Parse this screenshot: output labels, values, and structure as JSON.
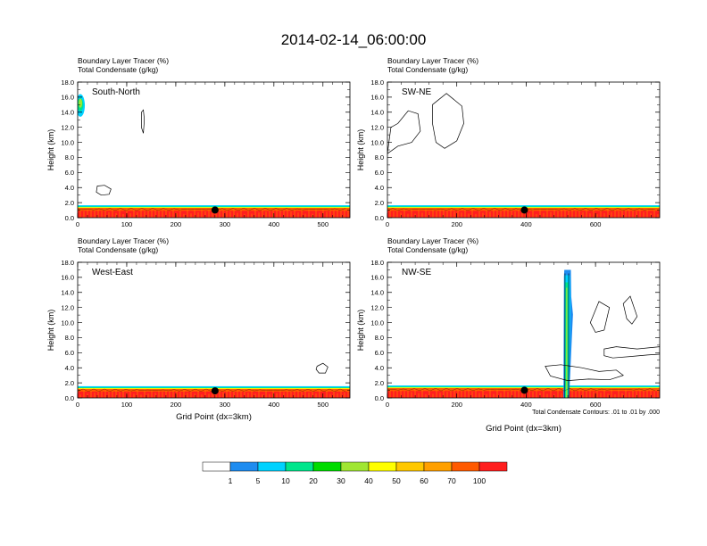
{
  "figure": {
    "title": "2014-02-14_06:00:00",
    "contour_note": "Total Condensate Contours: .01 to .01 by .000"
  },
  "colorbar": {
    "colors": [
      "#ffffff",
      "#1e8cf0",
      "#00d2ff",
      "#00e68c",
      "#00dc00",
      "#a0e632",
      "#ffff00",
      "#ffc800",
      "#ffa000",
      "#ff5a00",
      "#ff1e1e"
    ],
    "labels": [
      "1",
      "5",
      "10",
      "20",
      "30",
      "40",
      "50",
      "60",
      "70",
      "100"
    ]
  },
  "chart_data": [
    {
      "type": "contour",
      "panel_name": "South-North",
      "subtitle_1": "Boundary Layer Tracer    (%)",
      "subtitle_2": "Total Condensate   (g/kg)",
      "ylabel": "Height (km)",
      "xlabel": "",
      "xlim": [
        0,
        555
      ],
      "ylim": [
        0,
        18
      ],
      "xticks": [
        "0",
        "100",
        "200",
        "300",
        "400",
        "500"
      ],
      "xtick_values": [
        0,
        100,
        200,
        300,
        400,
        500
      ],
      "yticks": [
        "0.0",
        "2.0",
        "4.0",
        "6.0",
        "8.0",
        "10.0",
        "12.0",
        "14.0",
        "16.0",
        "18.0"
      ],
      "marker_x": 280,
      "bl_top": 1.3,
      "convective_column": {
        "x": [
          0,
          20
        ],
        "top": 16.5
      },
      "cloud_outlines": [
        [
          [
            130,
            14
          ],
          [
            134,
            14.3
          ],
          [
            136,
            13
          ],
          [
            134,
            11.2
          ],
          [
            130,
            12
          ]
        ],
        [
          [
            40,
            4.2
          ],
          [
            55,
            4.3
          ],
          [
            68,
            3.8
          ],
          [
            64,
            3.1
          ],
          [
            48,
            3.0
          ],
          [
            38,
            3.4
          ]
        ]
      ]
    },
    {
      "type": "contour",
      "panel_name": "SW-NE",
      "subtitle_1": "Boundary Layer Tracer    (%)",
      "subtitle_2": "Total Condensate   (g/kg)",
      "ylabel": "Height (km)",
      "xlabel": "",
      "xlim": [
        0,
        785
      ],
      "ylim": [
        0,
        18
      ],
      "xticks": [
        "0",
        "200",
        "400",
        "600"
      ],
      "xtick_values": [
        0,
        200,
        400,
        600
      ],
      "yticks": [
        "0.0",
        "2.0",
        "4.0",
        "6.0",
        "8.0",
        "10.0",
        "12.0",
        "14.0",
        "16.0",
        "18.0"
      ],
      "marker_x": 395,
      "bl_top": 1.3,
      "cloud_outlines": [
        [
          [
            0,
            8.5
          ],
          [
            30,
            9.5
          ],
          [
            70,
            10
          ],
          [
            95,
            11.5
          ],
          [
            88,
            13.8
          ],
          [
            60,
            14.2
          ],
          [
            30,
            12.5
          ],
          [
            10,
            12
          ]
        ],
        [
          [
            130,
            15
          ],
          [
            170,
            16.5
          ],
          [
            215,
            14.8
          ],
          [
            220,
            12.5
          ],
          [
            200,
            10.2
          ],
          [
            165,
            9.2
          ],
          [
            140,
            10
          ],
          [
            130,
            12.5
          ]
        ]
      ]
    },
    {
      "type": "contour",
      "panel_name": "West-East",
      "subtitle_1": "Boundary Layer Tracer    (%)",
      "subtitle_2": "Total Condensate   (g/kg)",
      "ylabel": "Height (km)",
      "xlabel": "Grid Point (dx=3km)",
      "xlim": [
        0,
        555
      ],
      "ylim": [
        0,
        18
      ],
      "xticks": [
        "0",
        "100",
        "200",
        "300",
        "400",
        "500"
      ],
      "xtick_values": [
        0,
        100,
        200,
        300,
        400,
        500
      ],
      "yticks": [
        "0.0",
        "2.0",
        "4.0",
        "6.0",
        "8.0",
        "10.0",
        "12.0",
        "14.0",
        "16.0",
        "18.0"
      ],
      "marker_x": 280,
      "bl_top": 1.2,
      "cloud_outlines": [
        [
          [
            488,
            4.2
          ],
          [
            500,
            4.6
          ],
          [
            510,
            4.1
          ],
          [
            505,
            3.3
          ],
          [
            492,
            3.3
          ],
          [
            486,
            3.8
          ]
        ]
      ]
    },
    {
      "type": "contour",
      "panel_name": "NW-SE",
      "subtitle_1": "Boundary Layer Tracer    (%)",
      "subtitle_2": "Total Condensate   (g/kg)",
      "ylabel": "Height (km)",
      "xlabel": "Grid Point (dx=3km)",
      "xlim": [
        0,
        785
      ],
      "ylim": [
        0,
        18
      ],
      "xticks": [
        "0",
        "200",
        "400",
        "600"
      ],
      "xtick_values": [
        0,
        200,
        400,
        600
      ],
      "yticks": [
        "0.0",
        "2.0",
        "4.0",
        "6.0",
        "8.0",
        "10.0",
        "12.0",
        "14.0",
        "16.0",
        "18.0"
      ],
      "marker_x": 395,
      "bl_top": 1.3,
      "convective_column": {
        "x": [
          495,
          545
        ],
        "top": 17
      },
      "cloud_outlines": [
        [
          [
            585,
            10
          ],
          [
            610,
            12.8
          ],
          [
            640,
            12
          ],
          [
            625,
            9
          ],
          [
            600,
            8.7
          ]
        ],
        [
          [
            680,
            12.5
          ],
          [
            700,
            13.5
          ],
          [
            720,
            10.8
          ],
          [
            705,
            9.8
          ],
          [
            690,
            10.5
          ]
        ],
        [
          [
            625,
            6.5
          ],
          [
            660,
            6.8
          ],
          [
            720,
            6.5
          ],
          [
            785,
            6.8
          ],
          [
            785,
            5.8
          ],
          [
            750,
            5.7
          ],
          [
            700,
            5.5
          ],
          [
            650,
            5.3
          ],
          [
            625,
            5.6
          ]
        ],
        [
          [
            455,
            4.2
          ],
          [
            500,
            4.4
          ],
          [
            560,
            4.0
          ],
          [
            610,
            3.5
          ],
          [
            660,
            3.7
          ],
          [
            680,
            3.0
          ],
          [
            640,
            2.4
          ],
          [
            580,
            2.5
          ],
          [
            520,
            2.3
          ],
          [
            470,
            2.9
          ]
        ]
      ]
    }
  ]
}
